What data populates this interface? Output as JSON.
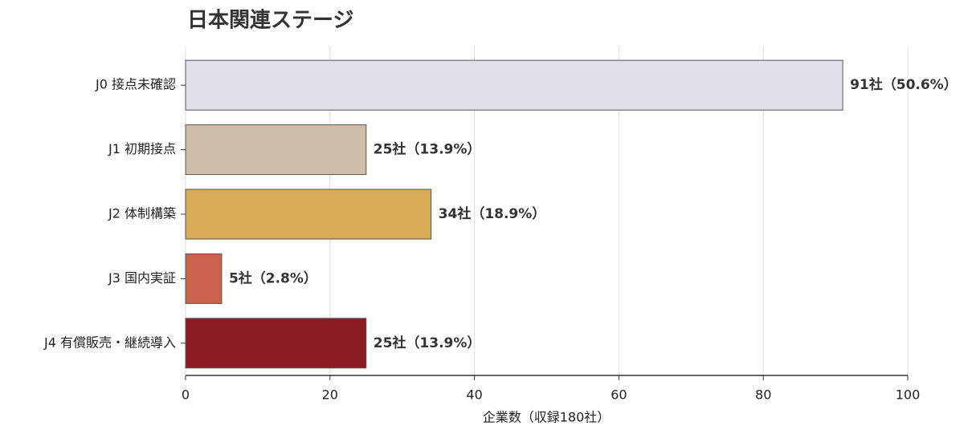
{
  "chart_data": {
    "type": "hbar",
    "title": "日本関連ステージ",
    "categories": [
      "J0 接点未確認",
      "J1 初期接点",
      "J2 体制構築",
      "J3 国内実証",
      "J4 有償販売・継続導入"
    ],
    "values": [
      91,
      25,
      34,
      5,
      25
    ],
    "value_labels": [
      "91社（50.6%）",
      "25社（13.9%）",
      "34社（18.9%）",
      "5社（2.8%）",
      "25社（13.9%）"
    ],
    "colors": [
      "#e0e1ea",
      "#d0bcaa",
      "#d8ac54",
      "#c96350",
      "#8b1c24"
    ],
    "xlabel": "企業数（収録180社）",
    "xlim": [
      0,
      100
    ],
    "xticks": [
      0,
      20,
      40,
      60,
      80,
      100
    ],
    "grid": true
  }
}
